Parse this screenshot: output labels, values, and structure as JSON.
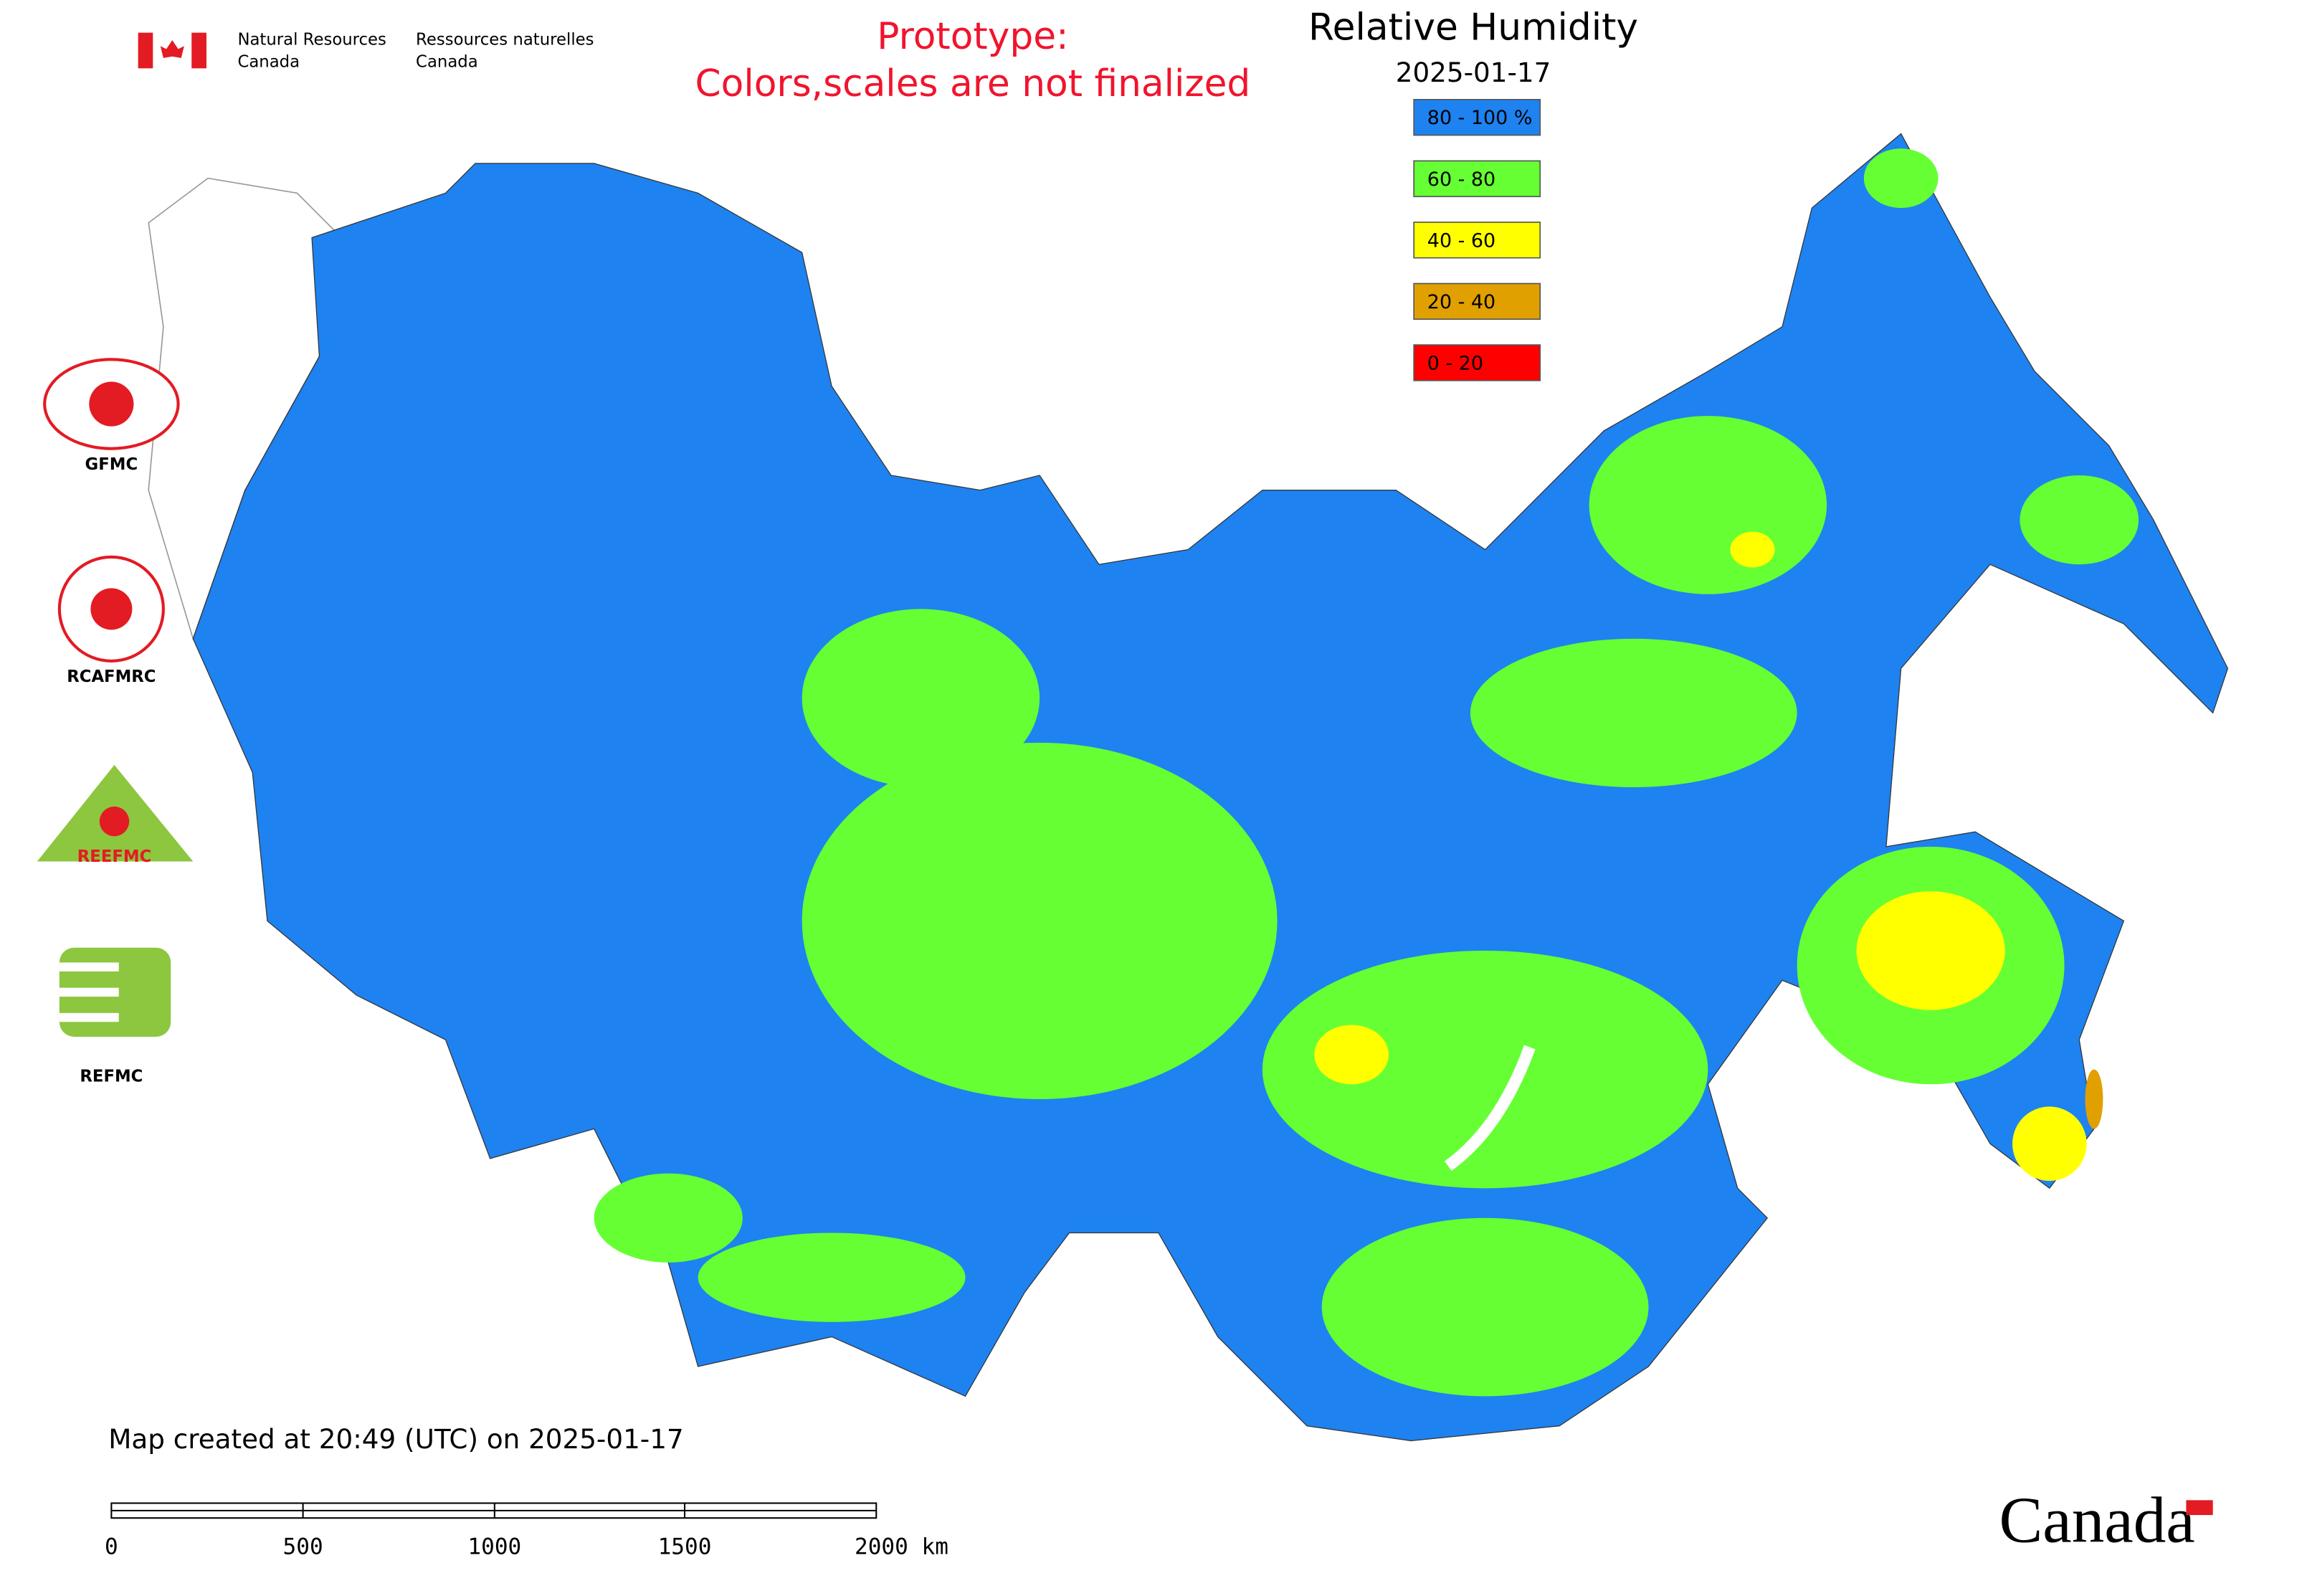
{
  "header": {
    "agency_en": [
      "Natural Resources",
      "Canada"
    ],
    "agency_fr": [
      "Ressources naturelles",
      "Canada"
    ],
    "notice": [
      "Prototype:",
      "Colors,scales are not finalized"
    ],
    "title": "Relative Humidity",
    "date": "2025-01-17"
  },
  "legend": [
    {
      "label": "80 - 100 %",
      "color": "#1e82f0"
    },
    {
      "label": "60 - 80",
      "color": "#66ff33"
    },
    {
      "label": "40 - 60",
      "color": "#ffff00"
    },
    {
      "label": "20 - 40",
      "color": "#e0a000"
    },
    {
      "label": "0 - 20",
      "color": "#ff0000"
    }
  ],
  "logos": [
    "GFMC",
    "RCAFMRC",
    "REEFMC",
    "REFMC"
  ],
  "footer": {
    "created": "Map created at 20:49 (UTC) on 2025-01-17",
    "wordmark": "Canada"
  },
  "scale_bar": {
    "labels": [
      "0",
      "500",
      "1000",
      "1500",
      "2000 km"
    ]
  }
}
